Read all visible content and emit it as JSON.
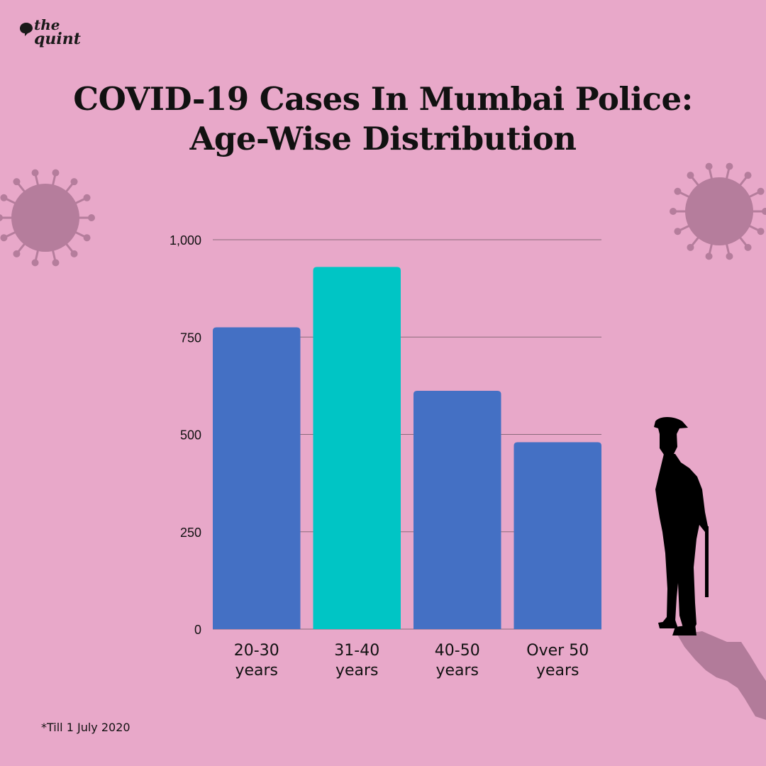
{
  "brand": {
    "line1": "the",
    "line2": "quint",
    "icon": "quint-logo-icon"
  },
  "title_lines": [
    "COVID-19 Cases In Mumbai Police:",
    "Age-Wise Distribution"
  ],
  "footnote": "*Till 1 July 2020",
  "colors": {
    "background": "#e8a8c9",
    "bar": "#4470c4",
    "highlight": "#00c5c5",
    "virus": "#b57d9c",
    "gridline": "#8a6a7a"
  },
  "chart_data": {
    "type": "bar",
    "title": "COVID-19 Cases In Mumbai Police: Age-Wise Distribution",
    "xlabel": "",
    "ylabel": "",
    "ylim": [
      0,
      1000
    ],
    "yticks": [
      0,
      250,
      500,
      750,
      1000
    ],
    "ytick_labels": [
      "0",
      "250",
      "500",
      "750",
      "1,000"
    ],
    "grid": true,
    "categories": [
      {
        "lines": [
          "20-30",
          "years"
        ],
        "value": 775,
        "highlight": false
      },
      {
        "lines": [
          "31-40",
          "years"
        ],
        "value": 930,
        "highlight": true
      },
      {
        "lines": [
          "40-50",
          "years"
        ],
        "value": 612,
        "highlight": false
      },
      {
        "lines": [
          "Over 50",
          "years"
        ],
        "value": 480,
        "highlight": false
      }
    ]
  },
  "decorations": [
    "virus-icon",
    "virus-icon",
    "police-officer-silhouette-icon"
  ]
}
